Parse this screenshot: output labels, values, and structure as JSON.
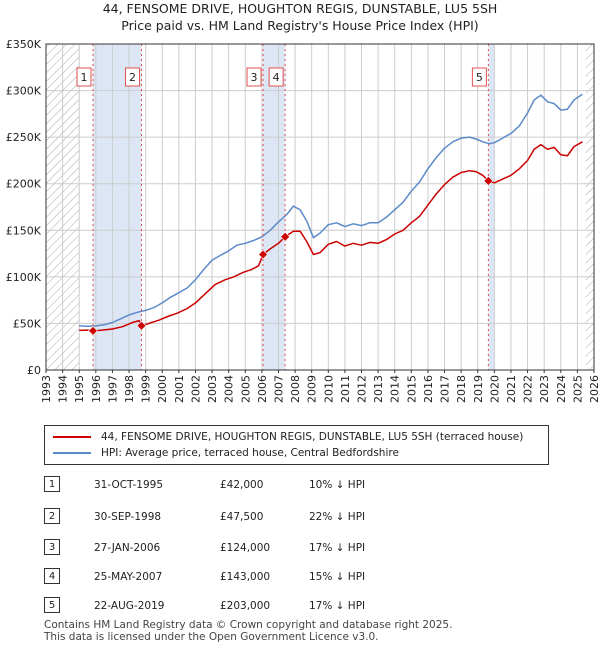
{
  "title": {
    "line1": "44, FENSOME DRIVE, HOUGHTON REGIS, DUNSTABLE, LU5 5SH",
    "line2": "Price paid vs. HM Land Registry's House Price Index (HPI)"
  },
  "colors": {
    "property_line": "#cc0000",
    "hpi_line": "#5b8ac9",
    "sale_shade": "#dde6f5",
    "hatch": "#999999",
    "grid": "#cccccc",
    "sale_vline": "#e05050"
  },
  "chart_data": {
    "type": "line",
    "title": "Price paid vs. HM Land Registry's House Price Index (HPI)",
    "xlabel": "",
    "ylabel": "",
    "xlim": [
      1993,
      2026
    ],
    "ylim": [
      0,
      350000
    ],
    "y_ticks": [
      {
        "value": 0,
        "label": "£0"
      },
      {
        "value": 50000,
        "label": "£50K"
      },
      {
        "value": 100000,
        "label": "£100K"
      },
      {
        "value": 150000,
        "label": "£150K"
      },
      {
        "value": 200000,
        "label": "£200K"
      },
      {
        "value": 250000,
        "label": "£250K"
      },
      {
        "value": 300000,
        "label": "£300K"
      },
      {
        "value": 350000,
        "label": "£350K"
      }
    ],
    "x_ticks": [
      "1993",
      "1994",
      "1995",
      "1996",
      "1997",
      "1998",
      "1999",
      "2000",
      "2001",
      "2002",
      "2003",
      "2004",
      "2005",
      "2006",
      "2007",
      "2008",
      "2009",
      "2010",
      "2011",
      "2012",
      "2013",
      "2014",
      "2015",
      "2016",
      "2017",
      "2018",
      "2019",
      "2020",
      "2021",
      "2022",
      "2023",
      "2024",
      "2025",
      "2026"
    ],
    "hatched_before": 1995.0,
    "hatched_after": 2025.5,
    "series": [
      {
        "name": "44, FENSOME DRIVE, HOUGHTON REGIS, DUNSTABLE, LU5 5SH (terraced house)",
        "color": "#cc0000",
        "points": [
          [
            1995.0,
            42500
          ],
          [
            1995.5,
            42800
          ],
          [
            1995.83,
            42000
          ],
          [
            1996.3,
            42600
          ],
          [
            1997.0,
            44000
          ],
          [
            1997.6,
            46500
          ],
          [
            1998.2,
            51000
          ],
          [
            1998.6,
            53000
          ],
          [
            1998.75,
            47500
          ],
          [
            1999.2,
            50000
          ],
          [
            1999.8,
            53500
          ],
          [
            2000.4,
            58000
          ],
          [
            2000.9,
            61000
          ],
          [
            2001.5,
            66000
          ],
          [
            2002.0,
            72000
          ],
          [
            2002.6,
            82000
          ],
          [
            2003.2,
            92000
          ],
          [
            2003.8,
            97000
          ],
          [
            2004.3,
            100000
          ],
          [
            2004.9,
            105000
          ],
          [
            2005.4,
            108000
          ],
          [
            2005.8,
            112000
          ],
          [
            2006.07,
            124000
          ],
          [
            2006.5,
            130000
          ],
          [
            2007.0,
            136000
          ],
          [
            2007.4,
            143000
          ],
          [
            2007.9,
            149000
          ],
          [
            2008.3,
            149000
          ],
          [
            2008.7,
            138000
          ],
          [
            2009.1,
            124000
          ],
          [
            2009.5,
            126000
          ],
          [
            2010.0,
            135000
          ],
          [
            2010.5,
            138000
          ],
          [
            2011.0,
            133000
          ],
          [
            2011.5,
            136000
          ],
          [
            2012.0,
            134000
          ],
          [
            2012.5,
            137000
          ],
          [
            2013.0,
            136000
          ],
          [
            2013.5,
            140000
          ],
          [
            2014.0,
            146000
          ],
          [
            2014.5,
            150000
          ],
          [
            2015.0,
            158000
          ],
          [
            2015.5,
            165000
          ],
          [
            2016.0,
            177000
          ],
          [
            2016.5,
            189000
          ],
          [
            2017.0,
            199000
          ],
          [
            2017.5,
            207000
          ],
          [
            2018.0,
            212000
          ],
          [
            2018.5,
            214000
          ],
          [
            2018.9,
            213000
          ],
          [
            2019.3,
            209000
          ],
          [
            2019.64,
            203000
          ],
          [
            2020.0,
            201000
          ],
          [
            2020.5,
            205000
          ],
          [
            2021.0,
            209000
          ],
          [
            2021.5,
            216000
          ],
          [
            2022.0,
            225000
          ],
          [
            2022.4,
            237000
          ],
          [
            2022.8,
            242000
          ],
          [
            2023.2,
            237000
          ],
          [
            2023.6,
            239000
          ],
          [
            2024.0,
            231000
          ],
          [
            2024.4,
            230000
          ],
          [
            2024.8,
            240000
          ],
          [
            2025.3,
            245000
          ]
        ]
      },
      {
        "name": "HPI: Average price, terraced house, Central Bedfordshire",
        "color": "#5b8ac9",
        "points": [
          [
            1995.0,
            47500
          ],
          [
            1995.5,
            47000
          ],
          [
            1996.0,
            47300
          ],
          [
            1996.5,
            48500
          ],
          [
            1997.0,
            51000
          ],
          [
            1997.5,
            55000
          ],
          [
            1998.0,
            59000
          ],
          [
            1998.5,
            62000
          ],
          [
            1999.0,
            64000
          ],
          [
            1999.5,
            67000
          ],
          [
            2000.0,
            72000
          ],
          [
            2000.5,
            78000
          ],
          [
            2001.0,
            83000
          ],
          [
            2001.5,
            88000
          ],
          [
            2002.0,
            97000
          ],
          [
            2002.5,
            108000
          ],
          [
            2003.0,
            118000
          ],
          [
            2003.5,
            123000
          ],
          [
            2004.0,
            128000
          ],
          [
            2004.5,
            134000
          ],
          [
            2005.0,
            136000
          ],
          [
            2005.5,
            139000
          ],
          [
            2006.0,
            143000
          ],
          [
            2006.5,
            150000
          ],
          [
            2007.0,
            159000
          ],
          [
            2007.5,
            167000
          ],
          [
            2007.9,
            176000
          ],
          [
            2008.3,
            172000
          ],
          [
            2008.7,
            160000
          ],
          [
            2009.1,
            142000
          ],
          [
            2009.5,
            147000
          ],
          [
            2010.0,
            156000
          ],
          [
            2010.5,
            158000
          ],
          [
            2011.0,
            154000
          ],
          [
            2011.5,
            157000
          ],
          [
            2012.0,
            155000
          ],
          [
            2012.5,
            158000
          ],
          [
            2013.0,
            158000
          ],
          [
            2013.5,
            164000
          ],
          [
            2014.0,
            172000
          ],
          [
            2014.5,
            180000
          ],
          [
            2015.0,
            192000
          ],
          [
            2015.5,
            202000
          ],
          [
            2016.0,
            216000
          ],
          [
            2016.5,
            228000
          ],
          [
            2017.0,
            238000
          ],
          [
            2017.5,
            245000
          ],
          [
            2018.0,
            249000
          ],
          [
            2018.5,
            250000
          ],
          [
            2018.9,
            248000
          ],
          [
            2019.3,
            245000
          ],
          [
            2019.7,
            243000
          ],
          [
            2020.0,
            244000
          ],
          [
            2020.5,
            249000
          ],
          [
            2021.0,
            254000
          ],
          [
            2021.5,
            262000
          ],
          [
            2022.0,
            276000
          ],
          [
            2022.4,
            290000
          ],
          [
            2022.8,
            295000
          ],
          [
            2023.2,
            288000
          ],
          [
            2023.6,
            286000
          ],
          [
            2024.0,
            279000
          ],
          [
            2024.4,
            280000
          ],
          [
            2024.8,
            290000
          ],
          [
            2025.3,
            296000
          ]
        ]
      }
    ],
    "sales": [
      {
        "num": "1",
        "x": 1995.83,
        "price": 42000
      },
      {
        "num": "2",
        "x": 1998.75,
        "price": 47500
      },
      {
        "num": "3",
        "x": 2006.07,
        "price": 124000
      },
      {
        "num": "4",
        "x": 2007.4,
        "price": 143000
      },
      {
        "num": "5",
        "x": 2019.64,
        "price": 203000
      }
    ],
    "shaded_ranges": [
      [
        1995.83,
        1998.75
      ],
      [
        2006.07,
        2007.4
      ],
      [
        2019.64,
        2020.0
      ]
    ]
  },
  "legend": {
    "property_label": "44, FENSOME DRIVE, HOUGHTON REGIS, DUNSTABLE, LU5 5SH (terraced house)",
    "hpi_label": "HPI: Average price, terraced house, Central Bedfordshire"
  },
  "sales_table": [
    {
      "num": "1",
      "date": "31-OCT-1995",
      "price": "£42,000",
      "hpi": "10% ↓ HPI"
    },
    {
      "num": "2",
      "date": "30-SEP-1998",
      "price": "£47,500",
      "hpi": "22% ↓ HPI"
    },
    {
      "num": "3",
      "date": "27-JAN-2006",
      "price": "£124,000",
      "hpi": "17% ↓ HPI"
    },
    {
      "num": "4",
      "date": "25-MAY-2007",
      "price": "£143,000",
      "hpi": "15% ↓ HPI"
    },
    {
      "num": "5",
      "date": "22-AUG-2019",
      "price": "£203,000",
      "hpi": "17% ↓ HPI"
    }
  ],
  "footer": {
    "line1": "Contains HM Land Registry data © Crown copyright and database right 2025.",
    "line2": "This data is licensed under the Open Government Licence v3.0."
  }
}
